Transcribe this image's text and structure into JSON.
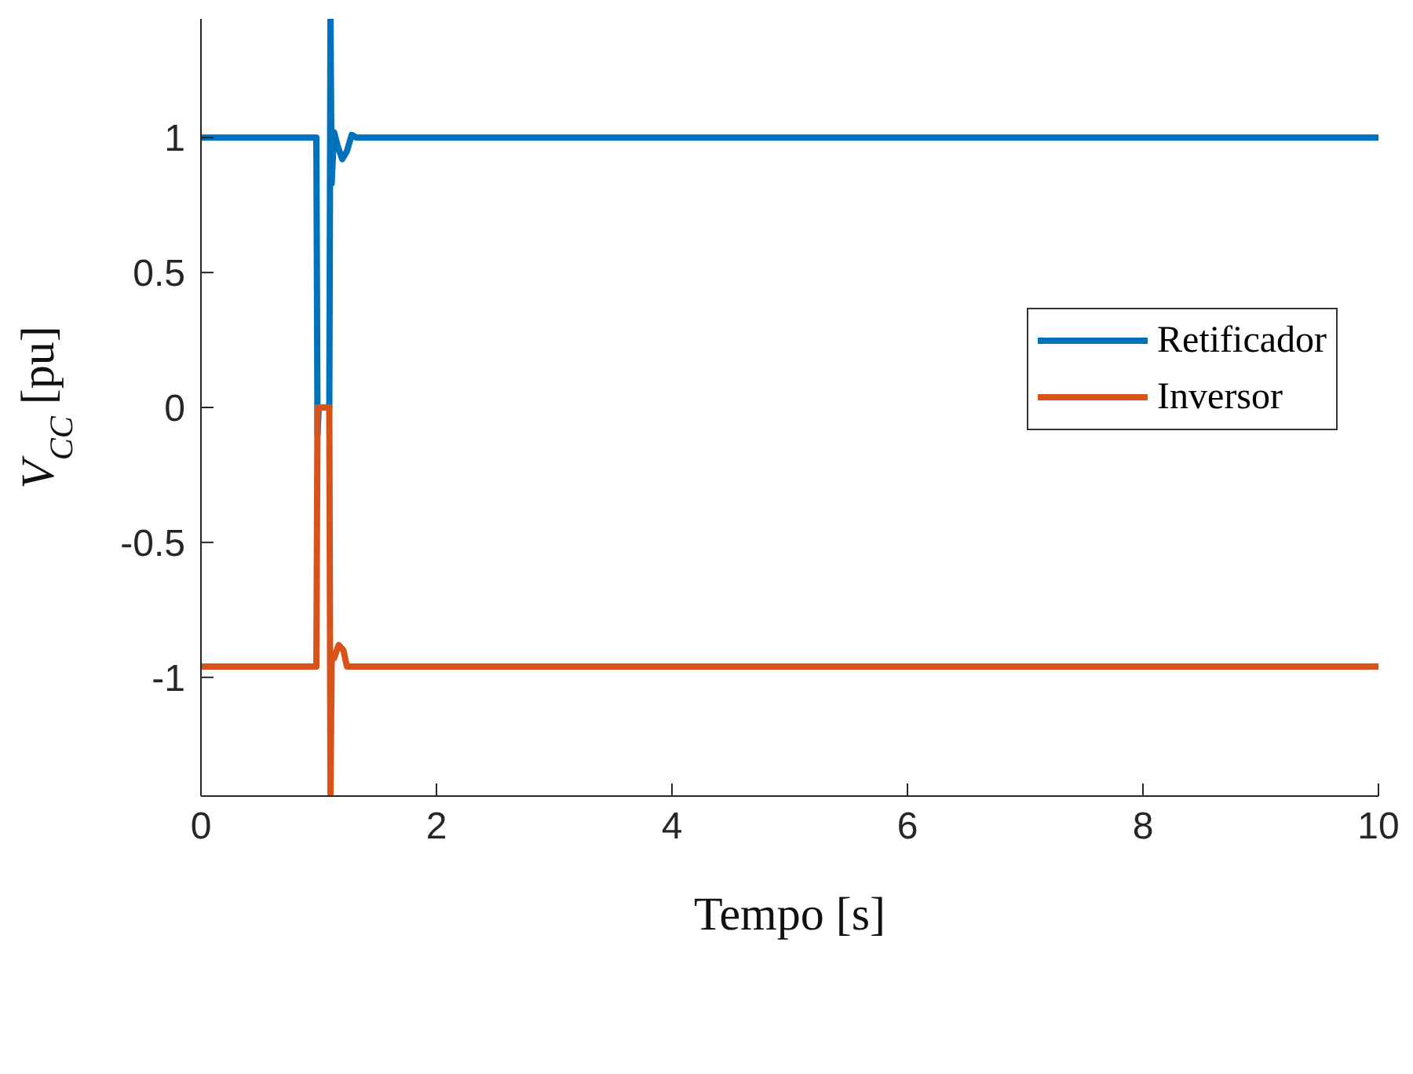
{
  "chart_data": {
    "type": "line",
    "xlabel": "Tempo [s]",
    "ylabel": "V$_{CC}$ [pu]",
    "xlim": [
      0,
      10
    ],
    "xticks": [
      0,
      2,
      4,
      6,
      8,
      10
    ],
    "ylim": [
      -1.44,
      1.44
    ],
    "yticks": [
      -1,
      -0.5,
      0,
      0.5,
      1
    ],
    "grid": false,
    "legend": "right",
    "marker": "none",
    "line_style": "solid",
    "series": [
      {
        "name": "Retificador",
        "color": "#0072bd",
        "x": [
          0,
          0.98,
          0.99,
          1.0,
          1.09,
          1.1,
          1.11,
          1.13,
          1.16,
          1.2,
          1.24,
          1.28,
          1.32,
          10
        ],
        "values": [
          1,
          1,
          -0.1,
          0,
          0,
          1.44,
          0.83,
          1.02,
          0.97,
          0.92,
          0.95,
          1.01,
          1.0,
          1
        ]
      },
      {
        "name": "Inversor",
        "color": "#d95319",
        "x": [
          0,
          0.98,
          0.99,
          1.09,
          1.1,
          1.11,
          1.13,
          1.17,
          1.21,
          1.24,
          10
        ],
        "values": [
          -0.96,
          -0.96,
          0,
          0,
          -1.44,
          -0.93,
          -0.93,
          -0.88,
          -0.9,
          -0.96,
          -0.96
        ]
      }
    ]
  }
}
